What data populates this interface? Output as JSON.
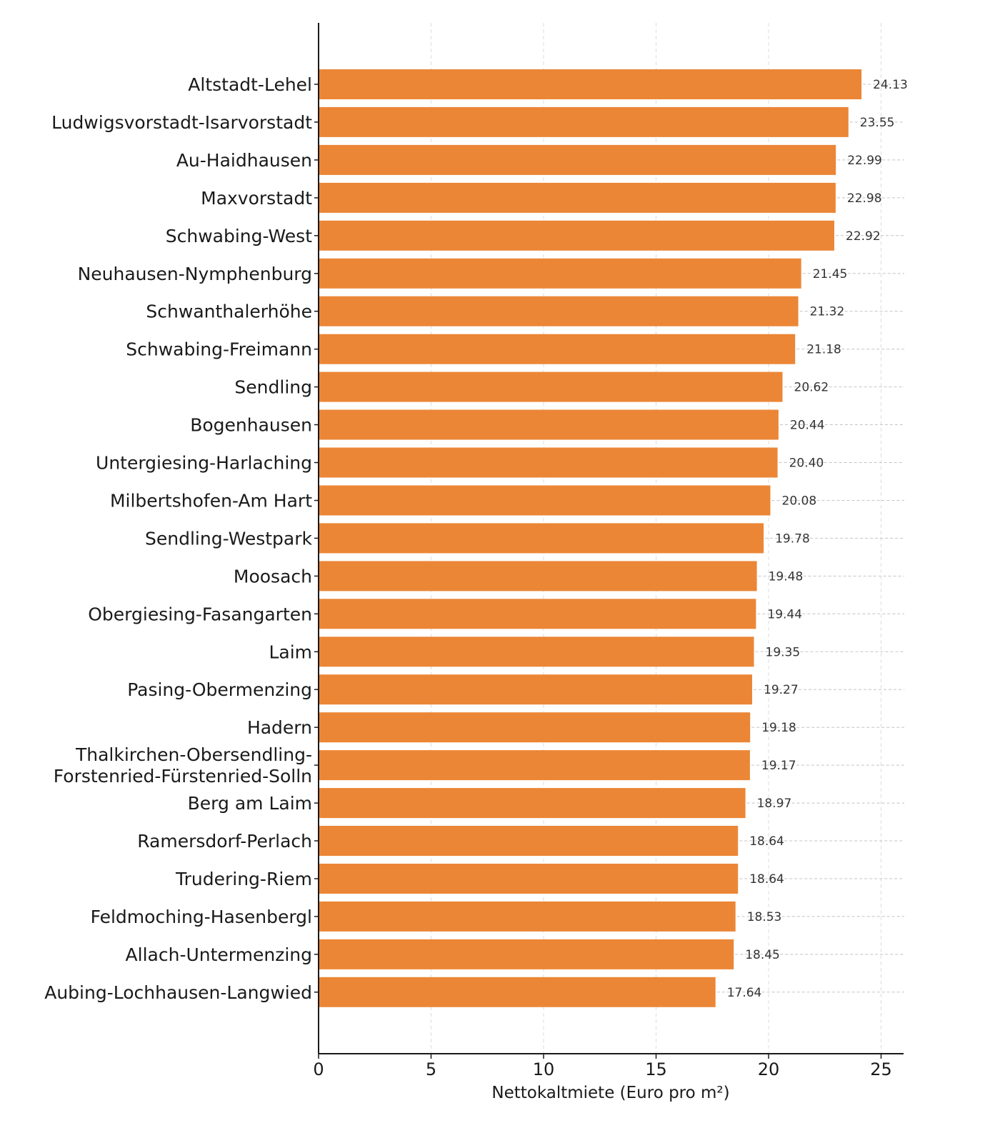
{
  "chart_data": {
    "type": "bar",
    "orientation": "horizontal",
    "categories": [
      "Altstadt-Lehel",
      "Ludwigsvorstadt-Isarvorstadt",
      "Au-Haidhausen",
      "Maxvorstadt",
      "Schwabing-West",
      "Neuhausen-Nymphenburg",
      "Schwanthalerhöhe",
      "Schwabing-Freimann",
      "Sendling",
      "Bogenhausen",
      "Untergiesing-Harlaching",
      "Milbertshofen-Am Hart",
      "Sendling-Westpark",
      "Moosach",
      "Obergiesing-Fasangarten",
      "Laim",
      "Pasing-Obermenzing",
      "Hadern",
      "Thalkirchen-Obersendling-\nForstenried-Fürstenried-Solln",
      "Berg am Laim",
      "Ramersdorf-Perlach",
      "Trudering-Riem",
      "Feldmoching-Hasenbergl",
      "Allach-Untermenzing",
      "Aubing-Lochhausen-Langwied"
    ],
    "values": [
      24.13,
      23.55,
      22.99,
      22.98,
      22.92,
      21.45,
      21.32,
      21.18,
      20.62,
      20.44,
      20.4,
      20.08,
      19.78,
      19.48,
      19.44,
      19.35,
      19.27,
      19.18,
      19.17,
      18.97,
      18.64,
      18.64,
      18.53,
      18.45,
      17.64
    ],
    "value_labels": [
      "24.13",
      "23.55",
      "22.99",
      "22.98",
      "22.92",
      "21.45",
      "21.32",
      "21.18",
      "20.62",
      "20.44",
      "20.40",
      "20.08",
      "19.78",
      "19.48",
      "19.44",
      "19.35",
      "19.27",
      "19.18",
      "19.17",
      "18.97",
      "18.64",
      "18.64",
      "18.53",
      "18.45",
      "17.64"
    ],
    "xlabel": "Nettokaltmiete (Euro pro m²)",
    "ylabel": "",
    "xlim": [
      0,
      26
    ],
    "xticks": [
      0,
      5,
      10,
      15,
      20,
      25
    ],
    "grid": "vertical dashed",
    "bar_color": "#EB8636"
  }
}
